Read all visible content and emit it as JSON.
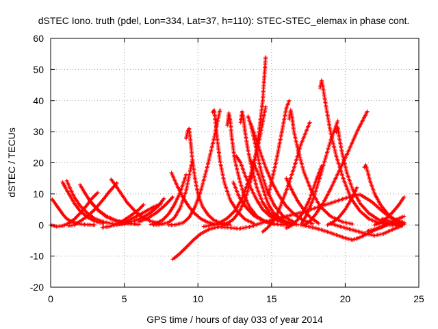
{
  "chart_data": {
    "type": "scatter",
    "title": "dSTEC Iono. truth (pdel, Lon=334, Lat=37, h=110): STEC-STEC_elemax in phase cont.",
    "xlabel": "GPS time / hours of day 033 of year 2014",
    "ylabel": "dSTEC  / TECUs",
    "xlim": [
      0,
      25
    ],
    "ylim": [
      -20,
      60
    ],
    "xticks": [
      0,
      5,
      10,
      15,
      20,
      25
    ],
    "yticks": [
      -20,
      -10,
      0,
      10,
      20,
      30,
      40,
      50,
      60
    ],
    "grid": true,
    "legend": "none",
    "marker": "+",
    "color": "#ff0000",
    "series": [
      {
        "x": [
          0.1,
          0.3,
          0.5,
          0.7,
          0.9,
          1.1,
          1.4,
          1.8,
          2.2,
          2.6,
          3.0
        ],
        "y": [
          8.3,
          7.0,
          5.6,
          4.3,
          3.0,
          2.0,
          1.1,
          0.5,
          0.2,
          0.1,
          0.0
        ]
      },
      {
        "x": [
          0.0,
          0.4,
          0.8,
          1.2,
          1.6,
          2.0,
          2.4,
          2.8,
          3.2
        ],
        "y": [
          0.0,
          -0.5,
          -0.3,
          0.5,
          1.8,
          3.8,
          6.0,
          8.5,
          10.4
        ]
      },
      {
        "x": [
          0.8,
          1.0,
          1.3,
          1.6,
          2.0,
          2.5,
          3.0,
          3.6
        ],
        "y": [
          13.8,
          12.0,
          9.5,
          7.0,
          4.5,
          2.5,
          1.2,
          0.5
        ]
      },
      {
        "x": [
          1.1,
          1.3,
          1.6,
          2.0,
          2.5,
          3.0,
          3.6,
          4.2,
          5.0
        ],
        "y": [
          14.2,
          12.0,
          9.0,
          6.2,
          3.8,
          2.0,
          1.0,
          0.4,
          0.2
        ]
      },
      {
        "x": [
          1.2,
          1.6,
          2.0,
          2.5,
          3.0,
          3.5,
          4.0,
          4.5
        ],
        "y": [
          -0.3,
          0.0,
          1.2,
          2.8,
          5.0,
          7.8,
          10.8,
          13.5
        ]
      },
      {
        "x": [
          2.0,
          2.3,
          2.7,
          3.2,
          3.8,
          4.5,
          5.2,
          6.0
        ],
        "y": [
          12.9,
          10.5,
          7.5,
          4.8,
          2.6,
          1.2,
          0.5,
          0.2
        ]
      },
      {
        "x": [
          2.6,
          2.9,
          3.3,
          3.8,
          4.4,
          5.0,
          5.8
        ],
        "y": [
          8.2,
          6.5,
          4.5,
          2.8,
          1.5,
          0.7,
          0.3
        ]
      },
      {
        "x": [
          4.1,
          4.4,
          4.8,
          5.2,
          5.7,
          6.2,
          6.8,
          7.5
        ],
        "y": [
          14.7,
          12.8,
          10.0,
          7.2,
          4.6,
          2.6,
          1.2,
          0.4
        ]
      },
      {
        "x": [
          3.5,
          4.0,
          4.5,
          5.0,
          5.5,
          6.0,
          6.3
        ],
        "y": [
          -0.8,
          -0.5,
          0.3,
          1.6,
          3.2,
          5.0,
          6.5
        ]
      },
      {
        "x": [
          4.5,
          5.0,
          5.5,
          6.0,
          6.5,
          7.0,
          7.5
        ],
        "y": [
          0.0,
          0.8,
          2.0,
          3.2,
          4.5,
          5.8,
          6.8
        ]
      },
      {
        "x": [
          5.0,
          5.6,
          6.2,
          6.8,
          7.3,
          7.7
        ],
        "y": [
          0.5,
          1.2,
          2.3,
          4.0,
          6.0,
          8.5
        ]
      },
      {
        "x": [
          6.0,
          6.6,
          7.2,
          7.8,
          8.3
        ],
        "y": [
          1.0,
          2.2,
          4.0,
          6.5,
          9.0
        ]
      },
      {
        "x": [
          6.8,
          7.2,
          7.6,
          8.0,
          8.4,
          8.8,
          9.2
        ],
        "y": [
          0.2,
          0.6,
          1.6,
          3.5,
          6.5,
          10.5,
          16.2
        ]
      },
      {
        "x": [
          7.0,
          7.5,
          8.0,
          8.4,
          8.8,
          9.2,
          9.6
        ],
        "y": [
          0.0,
          0.2,
          0.8,
          2.3,
          5.5,
          11.0,
          20.5
        ]
      },
      {
        "x": [
          8.0,
          8.5,
          9.0,
          9.4,
          9.8,
          10.2,
          10.6,
          11.1,
          11.5
        ],
        "y": [
          0.0,
          0.1,
          0.7,
          2.4,
          5.8,
          11.0,
          18.0,
          28.0,
          37.0
        ]
      },
      {
        "x": [
          8.2,
          8.6,
          9.0,
          9.4,
          9.8,
          10.2,
          10.6,
          11.0,
          11.6,
          12.0
        ],
        "y": [
          16.8,
          12.5,
          8.8,
          5.8,
          3.6,
          2.0,
          1.0,
          0.4,
          0.1,
          0.0
        ]
      },
      {
        "x": [
          8.3,
          8.7,
          9.2,
          9.7,
          10.2,
          10.8,
          11.4,
          12.0,
          12.8,
          13.6,
          14.4,
          15.2,
          16.0,
          17.0,
          18.0,
          19.0,
          20.0,
          21.0,
          21.8,
          22.5,
          23.2,
          24.0
        ],
        "y": [
          -11.0,
          -9.5,
          -7.2,
          -4.8,
          -2.8,
          -1.3,
          -0.6,
          -0.8,
          -1.2,
          -0.5,
          0.8,
          1.8,
          2.8,
          4.0,
          5.5,
          7.0,
          8.6,
          9.8,
          7.5,
          4.5,
          2.0,
          0.8
        ]
      },
      {
        "x": [
          9.2,
          9.3,
          9.4,
          9.5,
          9.6,
          9.8,
          10.0,
          10.3,
          10.7,
          11.1,
          11.6,
          12.2
        ],
        "y": [
          27.8,
          30.0,
          31.0,
          27.0,
          22.0,
          15.0,
          10.0,
          6.0,
          3.2,
          1.5,
          0.5,
          0.0
        ]
      },
      {
        "x": [
          10.4,
          10.8,
          11.2,
          11.6,
          12.0,
          12.5,
          13.0,
          13.6,
          14.2,
          14.6
        ],
        "y": [
          -0.5,
          -0.2,
          0.3,
          1.0,
          2.2,
          4.5,
          8.5,
          16.5,
          28.0,
          38.0
        ]
      },
      {
        "x": [
          11.0,
          11.1,
          11.2,
          11.3,
          11.5,
          11.8,
          12.2,
          12.7,
          13.2,
          13.8
        ],
        "y": [
          36.2,
          37.0,
          33.0,
          28.0,
          20.5,
          13.5,
          8.0,
          4.2,
          1.8,
          0.5
        ]
      },
      {
        "x": [
          11.6,
          12.0,
          12.4,
          12.8,
          13.2,
          13.6,
          14.0,
          14.4,
          14.6
        ],
        "y": [
          0.0,
          0.5,
          1.8,
          4.2,
          8.0,
          14.5,
          24.0,
          40.0,
          54.0
        ]
      },
      {
        "x": [
          12.0,
          12.1,
          12.2,
          12.3,
          12.5,
          12.8,
          13.1,
          13.5,
          14.0,
          14.6,
          15.2
        ],
        "y": [
          32.0,
          36.0,
          33.5,
          28.0,
          21.0,
          15.0,
          10.0,
          5.8,
          2.8,
          1.0,
          0.2
        ]
      },
      {
        "x": [
          12.4,
          12.8,
          13.3,
          13.8,
          14.4,
          15.0,
          15.6,
          16.1
        ],
        "y": [
          13.8,
          9.0,
          5.5,
          3.0,
          1.4,
          0.5,
          0.1,
          0.0
        ]
      },
      {
        "x": [
          12.6,
          12.9,
          13.2,
          13.6,
          14.0,
          14.4,
          14.9,
          15.5,
          16.2,
          16.8
        ],
        "y": [
          22.2,
          20.0,
          16.0,
          11.8,
          8.0,
          5.0,
          2.8,
          1.2,
          0.4,
          0.1
        ]
      },
      {
        "x": [
          12.9,
          13.0,
          13.1,
          13.2,
          13.4,
          13.7,
          14.0,
          14.4,
          14.9,
          15.5,
          16.2
        ],
        "y": [
          33.0,
          36.5,
          34.0,
          30.0,
          24.0,
          17.5,
          12.0,
          7.2,
          3.8,
          1.6,
          0.4
        ]
      },
      {
        "x": [
          13.4,
          13.6,
          13.8,
          14.0,
          14.3,
          14.7,
          15.2,
          15.8,
          16.5
        ],
        "y": [
          35.0,
          32.0,
          28.0,
          23.5,
          17.0,
          11.0,
          6.2,
          2.8,
          1.0
        ]
      },
      {
        "x": [
          13.6,
          13.8,
          14.0,
          14.2,
          14.4,
          14.6,
          14.8,
          15.1,
          15.5,
          16.0,
          16.6
        ],
        "y": [
          20.5,
          19.5,
          17.5,
          15.0,
          12.0,
          9.0,
          6.5,
          4.2,
          2.4,
          1.0,
          0.3
        ]
      },
      {
        "x": [
          13.6,
          14.0,
          14.3,
          14.6,
          15.0,
          15.5,
          16.0,
          16.6,
          17.2,
          17.8
        ],
        "y": [
          32.5,
          27.0,
          22.5,
          18.5,
          14.0,
          9.5,
          6.0,
          3.2,
          1.4,
          0.4
        ]
      },
      {
        "x": [
          14.4,
          14.7,
          15.0,
          15.3,
          15.6,
          16.0,
          16.5,
          17.0,
          17.6
        ],
        "y": [
          -2.2,
          -1.0,
          0.5,
          2.6,
          6.0,
          11.0,
          18.0,
          26.0,
          33.0
        ]
      },
      {
        "x": [
          14.8,
          15.0,
          15.2,
          15.4,
          15.6,
          15.8,
          16.0,
          16.2
        ],
        "y": [
          10.0,
          14.0,
          18.0,
          22.5,
          27.5,
          32.5,
          37.5,
          40.0
        ]
      },
      {
        "x": [
          16.0,
          16.4,
          16.8,
          17.2,
          17.6,
          18.0,
          18.4
        ],
        "y": [
          -1.0,
          0.0,
          1.8,
          4.5,
          8.5,
          14.0,
          19.0
        ]
      },
      {
        "x": [
          16.2,
          16.3,
          16.4,
          16.5,
          16.8,
          17.2,
          17.7,
          18.3,
          19.0,
          19.8,
          20.5
        ],
        "y": [
          34.0,
          37.0,
          34.5,
          30.5,
          24.0,
          17.0,
          11.0,
          6.0,
          2.8,
          1.0,
          0.3
        ]
      },
      {
        "x": [
          16.0,
          16.4,
          16.8,
          17.2,
          17.6,
          18.0,
          18.2
        ],
        "y": [
          15.0,
          11.0,
          7.5,
          4.8,
          2.6,
          1.2,
          0.5
        ]
      },
      {
        "x": [
          17.2,
          17.6,
          18.0,
          18.5,
          19.0,
          19.6,
          20.2,
          20.8,
          21.5
        ],
        "y": [
          0.0,
          1.2,
          3.5,
          7.0,
          11.5,
          17.5,
          23.5,
          30.0,
          36.5
        ]
      },
      {
        "x": [
          18.3,
          18.4,
          18.5,
          18.7,
          19.0,
          19.4,
          19.9,
          20.4,
          21.0,
          21.6,
          22.3,
          23.0,
          23.8
        ],
        "y": [
          44.0,
          46.5,
          44.0,
          38.0,
          30.0,
          22.0,
          14.5,
          8.5,
          4.5,
          2.0,
          0.6,
          0.0,
          -0.2
        ]
      },
      {
        "x": [
          17.0,
          17.4,
          17.8,
          18.2,
          18.6,
          19.0,
          19.5
        ],
        "y": [
          0.0,
          3.5,
          8.0,
          14.0,
          20.5,
          27.0,
          33.5
        ]
      },
      {
        "x": [
          18.8,
          19.2,
          19.6,
          20.0,
          20.4,
          20.8
        ],
        "y": [
          0.0,
          1.0,
          2.6,
          5.0,
          8.2,
          12.0
        ]
      },
      {
        "x": [
          19.4,
          19.5,
          19.6,
          19.8,
          20.1,
          20.5,
          21.0,
          21.6,
          22.3,
          23.0,
          23.8
        ],
        "y": [
          29.8,
          31.5,
          28.0,
          23.0,
          17.0,
          11.5,
          7.0,
          3.8,
          1.6,
          0.5,
          0.1
        ]
      },
      {
        "x": [
          17.0,
          17.6,
          18.2,
          18.8,
          19.4,
          20.0,
          20.5,
          21.0,
          21.6,
          22.2,
          22.8
        ],
        "y": [
          0.0,
          -0.6,
          -1.3,
          -2.2,
          -3.2,
          -4.2,
          -4.8,
          -4.0,
          -2.6,
          -1.2,
          0.0
        ]
      },
      {
        "x": [
          19.0,
          19.6,
          20.2,
          20.8,
          21.4,
          22.0,
          22.6,
          23.2,
          23.9
        ],
        "y": [
          0.5,
          -0.4,
          -1.2,
          -2.0,
          -2.8,
          -3.4,
          -2.8,
          -1.5,
          -0.2
        ]
      },
      {
        "x": [
          21.3,
          21.4,
          21.5,
          21.7,
          22.0,
          22.4,
          22.9,
          23.4,
          24.0
        ],
        "y": [
          18.5,
          19.3,
          17.5,
          14.0,
          10.0,
          6.5,
          3.5,
          1.5,
          0.4
        ]
      },
      {
        "x": [
          21.5,
          22.0,
          22.5,
          23.0,
          23.5,
          24.0
        ],
        "y": [
          -2.0,
          -1.4,
          -0.6,
          0.5,
          1.8,
          2.8
        ]
      },
      {
        "x": [
          22.0,
          22.4,
          22.8,
          23.2,
          23.6,
          24.0
        ],
        "y": [
          0.0,
          0.8,
          2.2,
          4.0,
          6.2,
          9.0
        ]
      },
      {
        "x": [
          22.5,
          23.0,
          23.5,
          24.0
        ],
        "y": [
          2.0,
          1.2,
          0.6,
          0.2
        ]
      }
    ]
  }
}
